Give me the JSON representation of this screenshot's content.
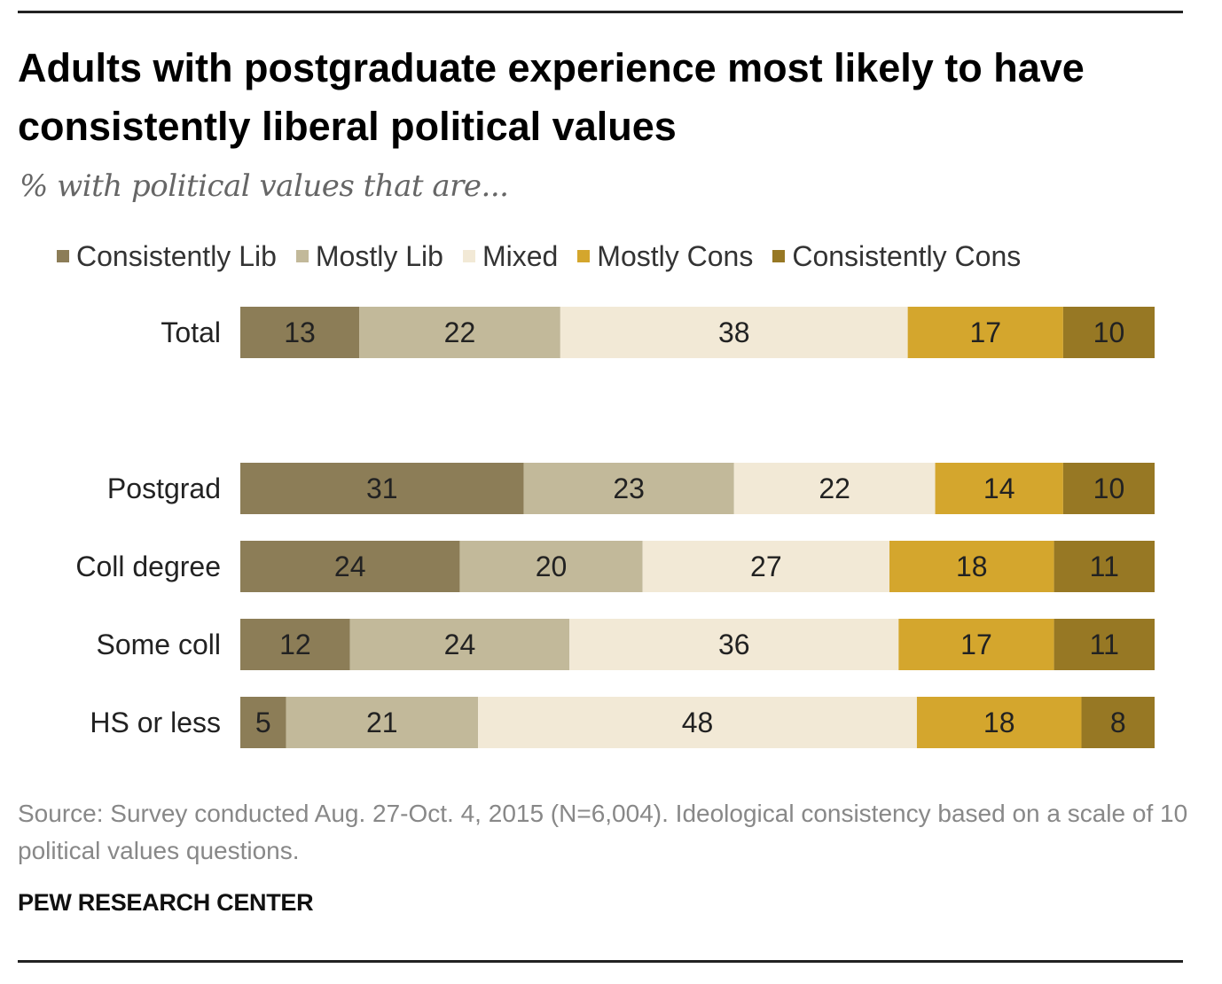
{
  "header": {
    "title": "Adults with postgraduate experience most likely to have consistently liberal political values",
    "subtitle": "% with political values that are..."
  },
  "footer": {
    "source": "Source: Survey conducted Aug. 27-Oct. 4, 2015 (N=6,004). Ideological consistency based on a scale of 10 political values questions.",
    "brand": "PEW RESEARCH CENTER"
  },
  "chart_data": {
    "type": "bar",
    "orientation": "horizontal",
    "stacked": true,
    "title": "Adults with postgraduate experience most likely to have consistently liberal political values",
    "subtitle": "% with political values that are...",
    "xlabel": "",
    "ylabel": "",
    "xlim": [
      0,
      100
    ],
    "legend_position": "top",
    "grid": false,
    "categories": [
      "Total",
      "Postgrad",
      "Coll degree",
      "Some coll",
      "HS or less"
    ],
    "series": [
      {
        "name": "Consistently Lib",
        "color": "#8c7d57",
        "values": [
          13,
          31,
          24,
          12,
          5
        ]
      },
      {
        "name": "Mostly Lib",
        "color": "#c2b99a",
        "values": [
          22,
          23,
          20,
          24,
          21
        ]
      },
      {
        "name": "Mixed",
        "color": "#f2e9d6",
        "values": [
          38,
          22,
          27,
          36,
          48
        ]
      },
      {
        "name": "Mostly Cons",
        "color": "#d4a62d",
        "values": [
          17,
          14,
          18,
          17,
          18
        ]
      },
      {
        "name": "Consistently Cons",
        "color": "#977824",
        "values": [
          10,
          10,
          11,
          11,
          8
        ]
      }
    ]
  }
}
